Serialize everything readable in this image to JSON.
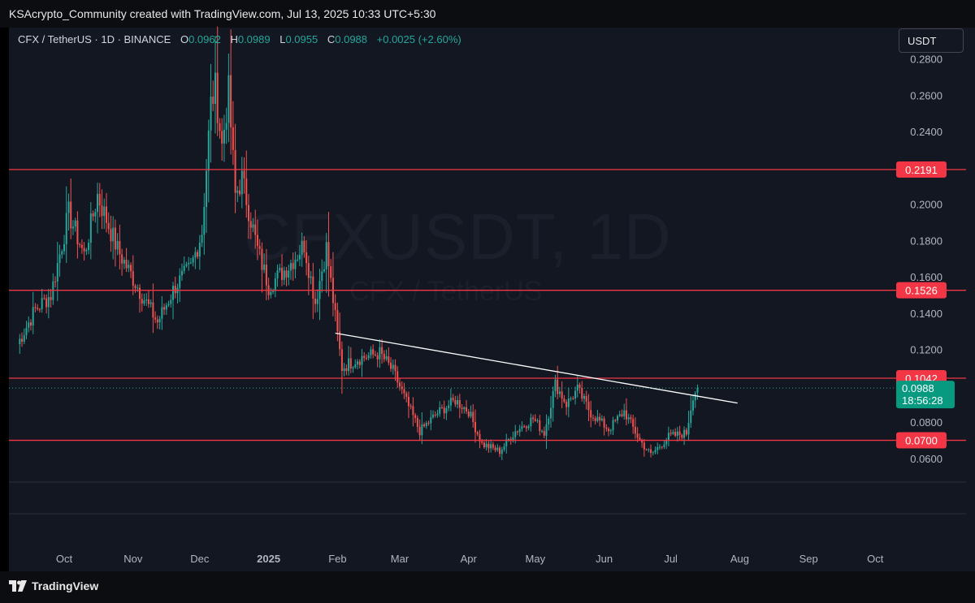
{
  "header": {
    "credit": "KSAcrypto_Community created with TradingView.com, Jul 13, 2025 10:33 UTC+5:30"
  },
  "legend": {
    "symbol": "CFX / TetherUS · 1D · BINANCE",
    "o_label": "O",
    "o_value": "0.0962",
    "h_label": "H",
    "h_value": "0.0989",
    "l_label": "L",
    "l_value": "0.0955",
    "c_label": "C",
    "c_value": "0.0988",
    "change": "+0.0025 (+2.60%)"
  },
  "currency_button": "USDT",
  "watermark": {
    "symbol": "CFXUSDT, 1D",
    "name": "CFX / TetherUS"
  },
  "footer": {
    "brand": "TradingView"
  },
  "colors": {
    "up": "#26a69a",
    "down": "#ef5350",
    "level_line": "#f23645",
    "trendline": "#ffffff",
    "background": "#131722"
  },
  "chart_data": {
    "type": "candlestick",
    "y_axis": {
      "range": [
        0.05,
        0.28
      ],
      "ticks": [
        "0.2800",
        "0.2600",
        "0.2400",
        "0.2200",
        "0.2000",
        "0.1800",
        "0.1600",
        "0.1400",
        "0.1200",
        "0.1000",
        "0.0800",
        "0.0600"
      ],
      "tick_values": [
        0.28,
        0.26,
        0.24,
        0.22,
        0.2,
        0.18,
        0.16,
        0.14,
        0.12,
        0.1,
        0.08,
        0.06
      ]
    },
    "x_axis": {
      "ticks": [
        "Oct",
        "Nov",
        "Dec",
        "2025",
        "Feb",
        "Mar",
        "Apr",
        "May",
        "Jun",
        "Jul",
        "Aug",
        "Sep",
        "Oct"
      ],
      "tick_dates": [
        "2024-10-01",
        "2024-11-01",
        "2024-12-01",
        "2025-01-01",
        "2025-02-01",
        "2025-03-01",
        "2025-04-01",
        "2025-05-01",
        "2025-06-01",
        "2025-07-01",
        "2025-08-01",
        "2025-09-01",
        "2025-10-01"
      ]
    },
    "levels": [
      {
        "value": 0.2191,
        "label": "0.2191"
      },
      {
        "value": 0.1526,
        "label": "0.1526"
      },
      {
        "value": 0.1042,
        "label": "0.1042"
      },
      {
        "value": 0.07,
        "label": "0.0700"
      }
    ],
    "current_price": {
      "value": 0.0988,
      "label": "0.0988",
      "countdown": "18:56:28"
    },
    "trendline": {
      "start": [
        "2025-01-31",
        0.129
      ],
      "end": [
        "2025-07-31",
        0.0905
      ]
    },
    "anchor_points": [
      [
        "2024-09-10",
        0.123
      ],
      [
        "2024-09-18",
        0.142
      ],
      [
        "2024-09-25",
        0.15
      ],
      [
        "2024-10-03",
        0.195
      ],
      [
        "2024-10-10",
        0.172
      ],
      [
        "2024-10-16",
        0.205
      ],
      [
        "2024-10-25",
        0.175
      ],
      [
        "2024-11-05",
        0.15
      ],
      [
        "2024-11-12",
        0.135
      ],
      [
        "2024-11-20",
        0.155
      ],
      [
        "2024-11-27",
        0.165
      ],
      [
        "2024-12-02",
        0.185
      ],
      [
        "2024-12-06",
        0.255
      ],
      [
        "2024-12-08",
        0.264
      ],
      [
        "2024-12-11",
        0.232
      ],
      [
        "2024-12-14",
        0.262
      ],
      [
        "2024-12-17",
        0.205
      ],
      [
        "2024-12-20",
        0.214
      ],
      [
        "2024-12-27",
        0.175
      ],
      [
        "2025-01-01",
        0.155
      ],
      [
        "2025-01-10",
        0.166
      ],
      [
        "2025-01-17",
        0.178
      ],
      [
        "2025-01-22",
        0.146
      ],
      [
        "2025-01-27",
        0.176
      ],
      [
        "2025-02-01",
        0.128
      ],
      [
        "2025-02-03",
        0.11
      ],
      [
        "2025-02-10",
        0.115
      ],
      [
        "2025-02-20",
        0.118
      ],
      [
        "2025-02-26",
        0.108
      ],
      [
        "2025-03-03",
        0.094
      ],
      [
        "2025-03-10",
        0.075
      ],
      [
        "2025-03-18",
        0.085
      ],
      [
        "2025-03-26",
        0.092
      ],
      [
        "2025-04-01",
        0.086
      ],
      [
        "2025-04-07",
        0.068
      ],
      [
        "2025-04-15",
        0.064
      ],
      [
        "2025-04-22",
        0.075
      ],
      [
        "2025-04-30",
        0.082
      ],
      [
        "2025-05-05",
        0.074
      ],
      [
        "2025-05-10",
        0.101
      ],
      [
        "2025-05-15",
        0.09
      ],
      [
        "2025-05-20",
        0.098
      ],
      [
        "2025-05-26",
        0.085
      ],
      [
        "2025-06-03",
        0.076
      ],
      [
        "2025-06-10",
        0.086
      ],
      [
        "2025-06-17",
        0.07
      ],
      [
        "2025-06-22",
        0.062
      ],
      [
        "2025-06-30",
        0.072
      ],
      [
        "2025-07-08",
        0.074
      ],
      [
        "2025-07-11",
        0.095
      ],
      [
        "2025-07-13",
        0.0988
      ]
    ]
  }
}
